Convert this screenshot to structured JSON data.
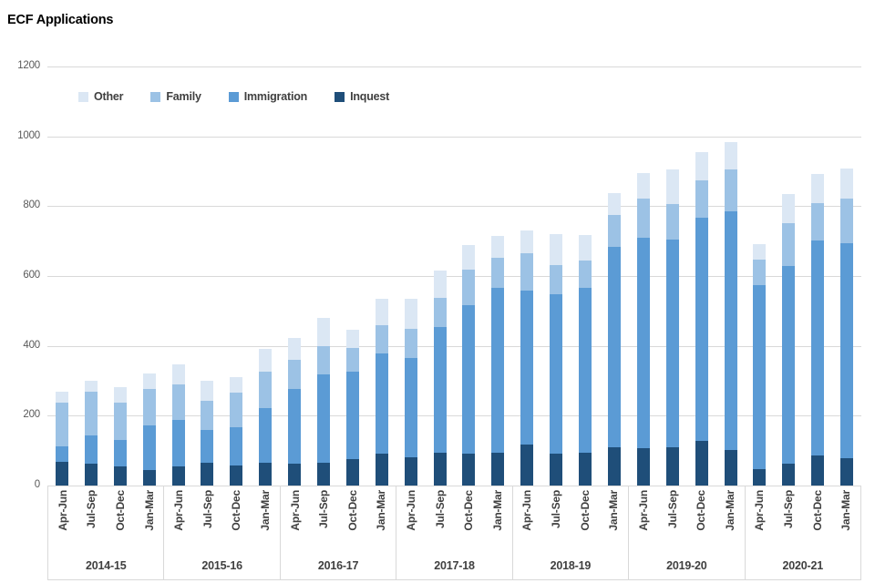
{
  "title": "ECF Applications",
  "colors": {
    "other": "#dbe7f4",
    "family": "#9cc2e5",
    "immigration": "#5b9bd5",
    "inquest": "#1f4e79",
    "gridline": "#d9d9d9",
    "axis_text": "#595959",
    "category_text": "#404040"
  },
  "chart_data": {
    "type": "bar",
    "stacked": true,
    "title": "ECF Applications",
    "xlabel": "",
    "ylabel": "",
    "ylim": [
      0,
      1200
    ],
    "yticks": [
      0,
      200,
      400,
      600,
      800,
      1000,
      1200
    ],
    "grid": true,
    "legend_position": "inside-top-left",
    "legend_order": [
      "Other",
      "Family",
      "Immigration",
      "Inquest"
    ],
    "stack_order_bottom_to_top": [
      "Inquest",
      "Immigration",
      "Family",
      "Other"
    ],
    "group_labels": [
      "2014-15",
      "2015-16",
      "2016-17",
      "2017-18",
      "2018-19",
      "2019-20",
      "2020-21"
    ],
    "categories_per_group": [
      "Apr-Jun",
      "Jul-Sep",
      "Oct-Dec",
      "Jan-Mar"
    ],
    "series": [
      {
        "name": "Other",
        "color": "#dbe7f4",
        "values": [
          32,
          31,
          45,
          44,
          57,
          58,
          44,
          65,
          62,
          81,
          52,
          76,
          86,
          79,
          71,
          63,
          65,
          89,
          73,
          62,
          73,
          99,
          81,
          78,
          44,
          84,
          84,
          86
        ]
      },
      {
        "name": "Family",
        "color": "#9cc2e5",
        "values": [
          125,
          126,
          106,
          105,
          102,
          84,
          99,
          104,
          84,
          81,
          68,
          81,
          84,
          83,
          102,
          86,
          107,
          83,
          78,
          92,
          113,
          102,
          107,
          120,
          73,
          122,
          106,
          128
        ]
      },
      {
        "name": "Immigration",
        "color": "#5b9bd5",
        "values": [
          44,
          80,
          75,
          128,
          133,
          94,
          110,
          157,
          213,
          253,
          250,
          287,
          284,
          360,
          425,
          472,
          441,
          457,
          472,
          573,
          602,
          594,
          639,
          683,
          527,
          566,
          616,
          616
        ]
      },
      {
        "name": "Inquest",
        "color": "#1f4e79",
        "values": [
          68,
          63,
          56,
          44,
          55,
          65,
          57,
          65,
          63,
          65,
          76,
          91,
          81,
          94,
          91,
          94,
          117,
          91,
          94,
          110,
          107,
          110,
          128,
          102,
          47,
          63,
          86,
          78
        ]
      }
    ]
  }
}
